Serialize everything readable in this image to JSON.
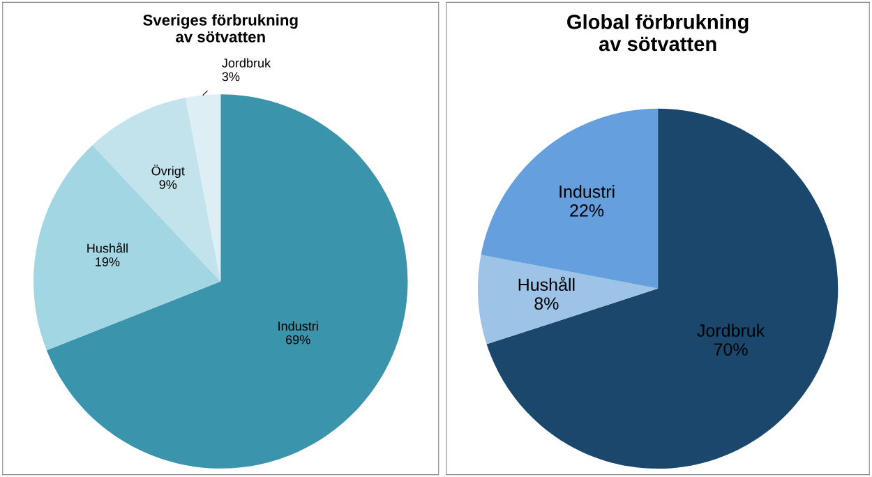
{
  "chart_data": [
    {
      "type": "pie",
      "title": "Sveriges förbrukning\nav sötvatten",
      "categories": [
        "Industri",
        "Hushåll",
        "Övrigt",
        "Jordbruk"
      ],
      "values": [
        69,
        19,
        9,
        3
      ],
      "value_labels": [
        "69%",
        "19%",
        "9%",
        "3%"
      ],
      "colors": [
        "#3a94ab",
        "#a3d6e3",
        "#c3e3ec",
        "#ddeff4"
      ]
    },
    {
      "type": "pie",
      "title": "Global förbrukning\nav sötvatten",
      "categories": [
        "Jordbruk",
        "Hushåll",
        "Industri"
      ],
      "values": [
        70,
        8,
        22
      ],
      "value_labels": [
        "70%",
        "8%",
        "22%"
      ],
      "colors": [
        "#1a476b",
        "#9dc3e6",
        "#659fdd"
      ]
    }
  ]
}
